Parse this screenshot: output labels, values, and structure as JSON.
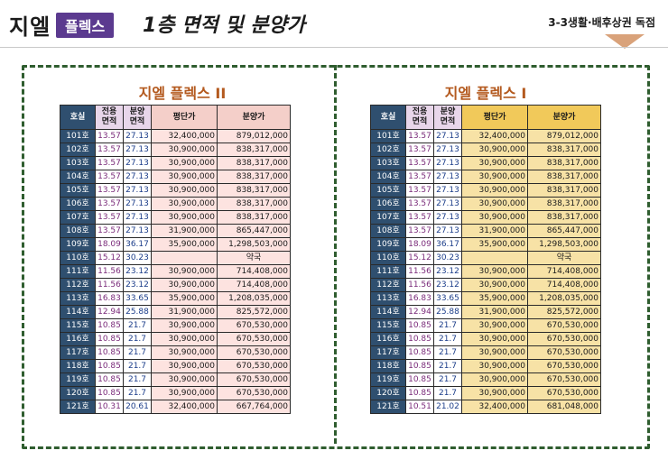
{
  "header": {
    "brand_main": "지엘",
    "brand_sub": "플렉스",
    "title": "1층 면적 및 분양가",
    "corner_text": "3-3생활·배후상권 독점"
  },
  "panels": [
    {
      "title": "지엘 플렉스 II",
      "headers": [
        "호실",
        "전용 면적",
        "분양 면적",
        "평단가",
        "분양가"
      ],
      "rows": [
        [
          "101호",
          "13.57",
          "27.13",
          "32,400,000",
          "879,012,000"
        ],
        [
          "102호",
          "13.57",
          "27.13",
          "30,900,000",
          "838,317,000"
        ],
        [
          "103호",
          "13.57",
          "27.13",
          "30,900,000",
          "838,317,000"
        ],
        [
          "104호",
          "13.57",
          "27.13",
          "30,900,000",
          "838,317,000"
        ],
        [
          "105호",
          "13.57",
          "27.13",
          "30,900,000",
          "838,317,000"
        ],
        [
          "106호",
          "13.57",
          "27.13",
          "30,900,000",
          "838,317,000"
        ],
        [
          "107호",
          "13.57",
          "27.13",
          "30,900,000",
          "838,317,000"
        ],
        [
          "108호",
          "13.57",
          "27.13",
          "31,900,000",
          "865,447,000"
        ],
        [
          "109호",
          "18.09",
          "36.17",
          "35,900,000",
          "1,298,503,000"
        ],
        [
          "110호",
          "15.12",
          "30.23",
          "",
          "약국"
        ],
        [
          "111호",
          "11.56",
          "23.12",
          "30,900,000",
          "714,408,000"
        ],
        [
          "112호",
          "11.56",
          "23.12",
          "30,900,000",
          "714,408,000"
        ],
        [
          "113호",
          "16.83",
          "33.65",
          "35,900,000",
          "1,208,035,000"
        ],
        [
          "114호",
          "12.94",
          "25.88",
          "31,900,000",
          "825,572,000"
        ],
        [
          "115호",
          "10.85",
          "21.7",
          "30,900,000",
          "670,530,000"
        ],
        [
          "116호",
          "10.85",
          "21.7",
          "30,900,000",
          "670,530,000"
        ],
        [
          "117호",
          "10.85",
          "21.7",
          "30,900,000",
          "670,530,000"
        ],
        [
          "118호",
          "10.85",
          "21.7",
          "30,900,000",
          "670,530,000"
        ],
        [
          "119호",
          "10.85",
          "21.7",
          "30,900,000",
          "670,530,000"
        ],
        [
          "120호",
          "10.85",
          "21.7",
          "30,900,000",
          "670,530,000"
        ],
        [
          "121호",
          "10.31",
          "20.61",
          "32,400,000",
          "667,764,000"
        ]
      ]
    },
    {
      "title": "지엘 플렉스 I",
      "headers": [
        "호실",
        "전용 면적",
        "분양 면적",
        "평단가",
        "분양가"
      ],
      "rows": [
        [
          "101호",
          "13.57",
          "27.13",
          "32,400,000",
          "879,012,000"
        ],
        [
          "102호",
          "13.57",
          "27.13",
          "30,900,000",
          "838,317,000"
        ],
        [
          "103호",
          "13.57",
          "27.13",
          "30,900,000",
          "838,317,000"
        ],
        [
          "104호",
          "13.57",
          "27.13",
          "30,900,000",
          "838,317,000"
        ],
        [
          "105호",
          "13.57",
          "27.13",
          "30,900,000",
          "838,317,000"
        ],
        [
          "106호",
          "13.57",
          "27.13",
          "30,900,000",
          "838,317,000"
        ],
        [
          "107호",
          "13.57",
          "27.13",
          "30,900,000",
          "838,317,000"
        ],
        [
          "108호",
          "13.57",
          "27.13",
          "31,900,000",
          "865,447,000"
        ],
        [
          "109호",
          "18.09",
          "36.17",
          "35,900,000",
          "1,298,503,000"
        ],
        [
          "110호",
          "15.12",
          "30.23",
          "",
          "약국"
        ],
        [
          "111호",
          "11.56",
          "23.12",
          "30,900,000",
          "714,408,000"
        ],
        [
          "112호",
          "11.56",
          "23.12",
          "30,900,000",
          "714,408,000"
        ],
        [
          "113호",
          "16.83",
          "33.65",
          "35,900,000",
          "1,208,035,000"
        ],
        [
          "114호",
          "12.94",
          "25.88",
          "31,900,000",
          "825,572,000"
        ],
        [
          "115호",
          "10.85",
          "21.7",
          "30,900,000",
          "670,530,000"
        ],
        [
          "116호",
          "10.85",
          "21.7",
          "30,900,000",
          "670,530,000"
        ],
        [
          "117호",
          "10.85",
          "21.7",
          "30,900,000",
          "670,530,000"
        ],
        [
          "118호",
          "10.85",
          "21.7",
          "30,900,000",
          "670,530,000"
        ],
        [
          "119호",
          "10.85",
          "21.7",
          "30,900,000",
          "670,530,000"
        ],
        [
          "120호",
          "10.85",
          "21.7",
          "30,900,000",
          "670,530,000"
        ],
        [
          "121호",
          "10.51",
          "21.02",
          "32,400,000",
          "681,048,000"
        ]
      ]
    }
  ]
}
